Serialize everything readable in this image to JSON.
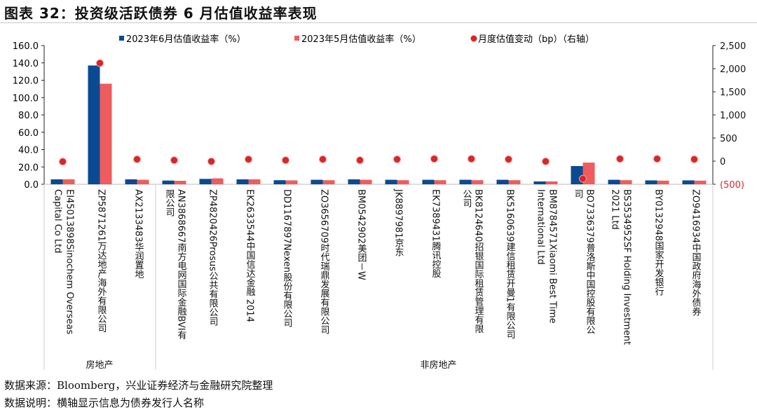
{
  "title": "图表 32：投资级活跃债券 6 月估值收益率表现",
  "footer": {
    "source": "数据来源：Bloomberg，兴业证券经济与金融研究院整理",
    "note": "数据说明：横轴显示信息为债券发行人名称"
  },
  "colors": {
    "jun": "#0b4a92",
    "may": "#ee5c5e",
    "dot": "#d7262a",
    "neg_label": "#d7262a"
  },
  "chart_data": {
    "type": "bar",
    "title": "",
    "legend": [
      "2023年6月估值收益率（%）",
      "2023年5月估值收益率（%）",
      "月度估值变动（bp）（右轴）"
    ],
    "legend_placement": "top",
    "categories": [
      [
        "EI45013898Sinochem Overseas",
        "Capital Co Ltd"
      ],
      [
        "ZP5871261万达地产海外有限公司"
      ],
      [
        "AX2133483华润置地"
      ],
      [
        "AN3868667南方电网国际金融BVI有",
        "限公司"
      ],
      [
        "ZP4820426Prosus公共有限公司"
      ],
      [
        "EK2633544中国信达金融 2014"
      ],
      [
        "DD1167897Nexen股份有限公司"
      ],
      [
        "ZO3656709时代瑞鼎发展有限公司"
      ],
      [
        "BM0542902美团－W"
      ],
      [
        "JK8897981京东"
      ],
      [
        "EK7389431腾讯控股"
      ],
      [
        "BK8124640招银国际租赁管理有限",
        "公司"
      ],
      [
        "BK5160639建信租赁开曼1有限公司"
      ],
      [
        "BM8784571Xiaomi Best Time",
        "International Ltd"
      ],
      [
        "BO7336379普洛斯中国控股有限公",
        "司"
      ],
      [
        "BS3534952SF Holding Investment",
        "2021 Ltd"
      ],
      [
        "BY0132948国家开发银行"
      ],
      [
        "ZO9416934中国政府海外债券"
      ]
    ],
    "groups": [
      {
        "label": "房地产",
        "count": 3
      },
      {
        "label": "非房地产",
        "count": 15
      }
    ],
    "series": [
      {
        "name": "2023年6月估值收益率（%）",
        "axis": "left",
        "values": [
          5.7,
          137,
          5.7,
          4.3,
          6.2,
          5.7,
          4.7,
          5.2,
          5.7,
          5.2,
          5.2,
          5.2,
          5.2,
          3.3,
          21,
          5.2,
          4.5,
          4.5
        ]
      },
      {
        "name": "2023年5月估值收益率（%）",
        "axis": "left",
        "values": [
          5.7,
          116,
          5.2,
          4.0,
          6.8,
          5.7,
          4.5,
          4.7,
          5.2,
          4.7,
          4.7,
          4.7,
          4.7,
          3.3,
          25,
          4.7,
          4.2,
          4.2
        ]
      },
      {
        "name": "月度估值变动（bp）（右轴）",
        "axis": "right",
        "type": "scatter",
        "values": [
          -10,
          2120,
          40,
          20,
          -5,
          40,
          20,
          40,
          20,
          40,
          50,
          50,
          40,
          -5,
          -380,
          50,
          50,
          40
        ]
      }
    ],
    "ylim": [
      0,
      160
    ],
    "yticks": [
      "0.0",
      "20.0",
      "40.0",
      "60.0",
      "80.0",
      "100.0",
      "120.0",
      "140.0",
      "160.0"
    ],
    "y2lim": [
      -500,
      2500
    ],
    "y2ticks": [
      "(500)",
      "0",
      "500",
      "1,000",
      "1,500",
      "2,000",
      "2,500"
    ]
  }
}
